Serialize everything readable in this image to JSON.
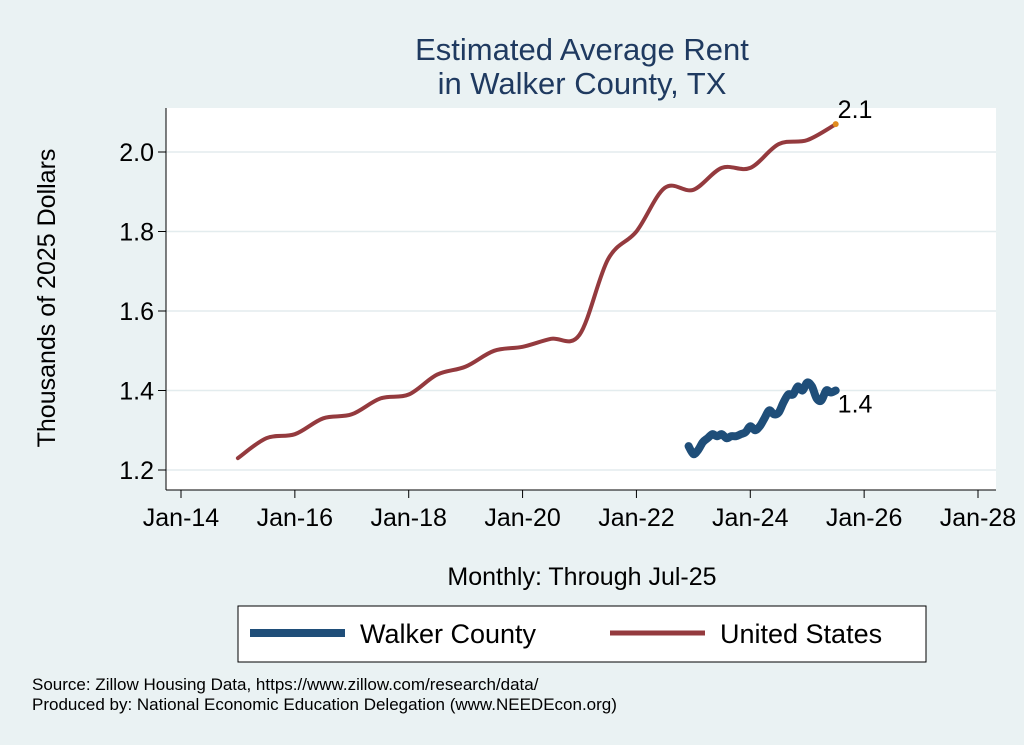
{
  "chart_data": {
    "type": "line",
    "title": [
      "Estimated Average Rent",
      "in Walker County, TX"
    ],
    "xlabel": "Monthly: Through Jul-25",
    "ylabel": "Thousands of 2025 Dollars",
    "x_ticks": [
      "Jan-14",
      "Jan-16",
      "Jan-18",
      "Jan-20",
      "Jan-22",
      "Jan-24",
      "Jan-26",
      "Jan-28"
    ],
    "xlim": [
      "2014-01",
      "2028-01"
    ],
    "y_ticks": [
      "1.2",
      "1.4",
      "1.6",
      "1.8",
      "2.0"
    ],
    "ylim": [
      1.2,
      2.1
    ],
    "grid": true,
    "legend_position": "bottom",
    "series": [
      {
        "name": "Walker County",
        "color": "#1f4e79",
        "end_label": "1.4",
        "x": [
          "2022-12",
          "2023-01",
          "2023-02",
          "2023-03",
          "2023-04",
          "2023-05",
          "2023-06",
          "2023-07",
          "2023-08",
          "2023-09",
          "2023-10",
          "2023-11",
          "2023-12",
          "2024-01",
          "2024-02",
          "2024-03",
          "2024-04",
          "2024-05",
          "2024-06",
          "2024-07",
          "2024-08",
          "2024-09",
          "2024-10",
          "2024-11",
          "2024-12",
          "2025-01",
          "2025-02",
          "2025-03",
          "2025-04",
          "2025-05",
          "2025-06",
          "2025-07"
        ],
        "y": [
          1.26,
          1.24,
          1.25,
          1.27,
          1.28,
          1.29,
          1.285,
          1.29,
          1.28,
          1.285,
          1.285,
          1.29,
          1.295,
          1.31,
          1.3,
          1.31,
          1.33,
          1.35,
          1.34,
          1.345,
          1.37,
          1.39,
          1.39,
          1.41,
          1.4,
          1.42,
          1.41,
          1.38,
          1.375,
          1.4,
          1.395,
          1.4
        ]
      },
      {
        "name": "United States",
        "color": "#943a3e",
        "end_label": "2.1",
        "x": [
          "2015-01",
          "2015-07",
          "2016-01",
          "2016-07",
          "2017-01",
          "2017-07",
          "2018-01",
          "2018-07",
          "2019-01",
          "2019-07",
          "2020-01",
          "2020-07",
          "2021-01",
          "2021-07",
          "2022-01",
          "2022-07",
          "2023-01",
          "2023-07",
          "2024-01",
          "2024-07",
          "2025-01",
          "2025-07"
        ],
        "y": [
          1.23,
          1.28,
          1.29,
          1.33,
          1.34,
          1.38,
          1.39,
          1.44,
          1.46,
          1.5,
          1.51,
          1.53,
          1.54,
          1.73,
          1.8,
          1.91,
          1.905,
          1.96,
          1.96,
          2.02,
          2.03,
          2.07
        ]
      }
    ]
  },
  "notes": [
    "Source: Zillow Housing Data, https://www.zillow.com/research/data/",
    "Produced by: National Economic Education Delegation (www.NEEDEcon.org)"
  ]
}
